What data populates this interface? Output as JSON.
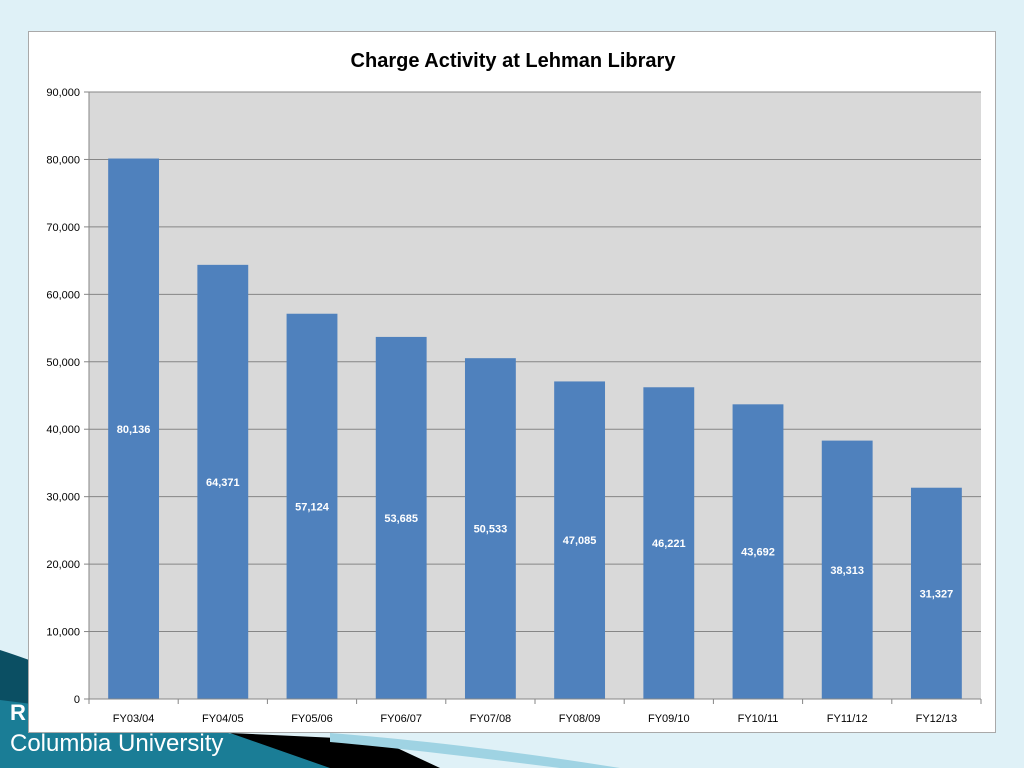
{
  "slide": {
    "footer_partial_text": "R",
    "footer_org_text": "Columbia University"
  },
  "colors": {
    "background": "#dff1f7",
    "plot_area": "#d9d9d9",
    "bar": "#4f81bd",
    "gridline": "#868686",
    "data_label": "#ffffff",
    "footer_dark": "#0b4f63",
    "footer_mid": "#1a7d96",
    "footer_accent": "#000000"
  },
  "chart_data": {
    "type": "bar",
    "title": "Charge Activity at Lehman Library",
    "xlabel": "",
    "ylabel": "",
    "categories": [
      "FY03/04",
      "FY04/05",
      "FY05/06",
      "FY06/07",
      "FY07/08",
      "FY08/09",
      "FY09/10",
      "FY10/11",
      "FY11/12",
      "FY12/13"
    ],
    "values": [
      80136,
      64371,
      57124,
      53685,
      50533,
      47085,
      46221,
      43692,
      38313,
      31327
    ],
    "data_labels": [
      "80,136",
      "64,371",
      "57,124",
      "53,685",
      "50,533",
      "47,085",
      "46,221",
      "43,692",
      "38,313",
      "31,327"
    ],
    "ylim": [
      0,
      90000
    ],
    "yticks": [
      0,
      10000,
      20000,
      30000,
      40000,
      50000,
      60000,
      70000,
      80000,
      90000
    ],
    "ytick_labels": [
      "0",
      "10,000",
      "20,000",
      "30,000",
      "40,000",
      "50,000",
      "60,000",
      "70,000",
      "80,000",
      "90,000"
    ],
    "grid": true,
    "legend": "none",
    "data_label_position": "center"
  }
}
